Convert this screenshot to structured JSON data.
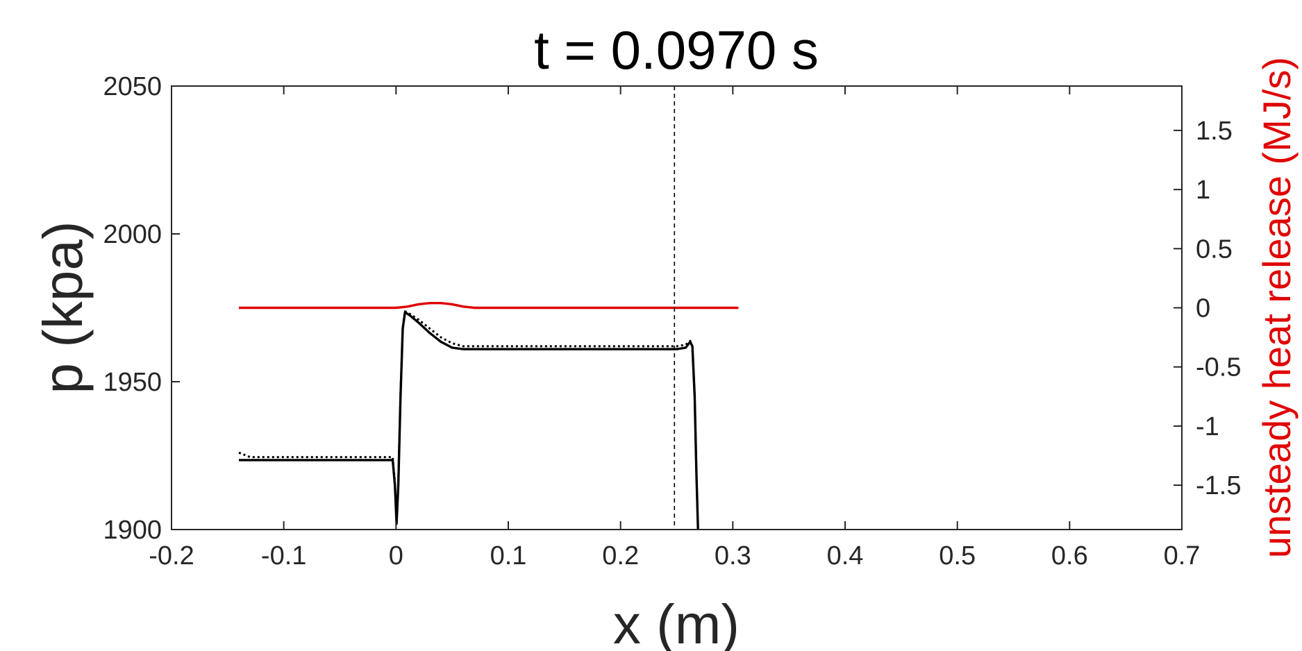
{
  "chart_data": {
    "type": "line",
    "title": "t = 0.0970 s",
    "xlabel": "x (m)",
    "ylabel_left": "p (kpa)",
    "ylabel_right": "unsteady heat release (MJ/s)",
    "xlim": [
      -0.2,
      0.7
    ],
    "ylim_left": [
      1900,
      2050
    ],
    "ylim_right": [
      -1.875,
      1.875
    ],
    "x_ticks": [
      -0.2,
      -0.1,
      0,
      0.1,
      0.2,
      0.3,
      0.4,
      0.5,
      0.6,
      0.7
    ],
    "x_tick_labels": [
      "-0.2",
      "-0.1",
      "0",
      "0.1",
      "0.2",
      "0.3",
      "0.4",
      "0.5",
      "0.6",
      "0.7"
    ],
    "y_left_ticks": [
      1900,
      1950,
      2000,
      2050
    ],
    "y_left_tick_labels": [
      "1900",
      "1950",
      "2000",
      "2050"
    ],
    "y_right_ticks": [
      -1.5,
      -1,
      -0.5,
      0,
      0.5,
      1,
      1.5
    ],
    "y_right_tick_labels": [
      "-1.5",
      "-1",
      "-0.5",
      "0",
      "0.5",
      "1",
      "1.5"
    ],
    "grid": false,
    "reference_line_x": 0.248,
    "colors": {
      "pressure": "#000000",
      "heat_release": "#e00000",
      "axes": "#262626"
    },
    "series": [
      {
        "axis": "left",
        "style": "solid",
        "color": "#000000",
        "x": [
          -0.14,
          -0.1,
          -0.05,
          -0.003,
          -0.001,
          0.0005,
          0.002,
          0.004,
          0.006,
          0.008,
          0.012,
          0.02,
          0.03,
          0.04,
          0.05,
          0.06,
          0.07,
          0.1,
          0.15,
          0.2,
          0.25,
          0.258,
          0.262,
          0.264,
          0.266,
          0.2675,
          0.269
        ],
        "y": [
          1923.5,
          1923.5,
          1923.5,
          1923.5,
          1915,
          1902,
          1915,
          1945,
          1968,
          1973.5,
          1972.5,
          1970,
          1966.5,
          1963.5,
          1961.5,
          1961,
          1961,
          1961,
          1961,
          1961,
          1961,
          1961.5,
          1963.5,
          1962,
          1945,
          1920,
          1900
        ]
      },
      {
        "axis": "left",
        "style": "dotted",
        "color": "#000000",
        "x": [
          -0.14,
          -0.13,
          -0.1,
          -0.05,
          -0.003,
          -0.001,
          0.0005,
          0.002,
          0.004,
          0.006,
          0.008,
          0.012,
          0.02,
          0.03,
          0.04,
          0.05,
          0.06,
          0.07,
          0.1,
          0.15,
          0.2,
          0.25,
          0.258,
          0.262,
          0.264,
          0.266,
          0.2675,
          0.269
        ],
        "y": [
          1926,
          1924.5,
          1924.5,
          1924.5,
          1924.5,
          1916,
          1903,
          1916,
          1946,
          1968.5,
          1973.8,
          1973,
          1971,
          1968,
          1965,
          1963,
          1962,
          1962,
          1962,
          1962,
          1962,
          1962,
          1962.5,
          1963.8,
          1962,
          1945,
          1920,
          1900
        ]
      },
      {
        "axis": "right",
        "style": "solid",
        "color": "#e00000",
        "x": [
          -0.14,
          0.0,
          0.01,
          0.02,
          0.03,
          0.04,
          0.05,
          0.06,
          0.07,
          0.1,
          0.2,
          0.305
        ],
        "y": [
          0,
          0,
          0.01,
          0.03,
          0.04,
          0.04,
          0.03,
          0.01,
          0,
          0,
          0,
          0
        ]
      }
    ]
  }
}
